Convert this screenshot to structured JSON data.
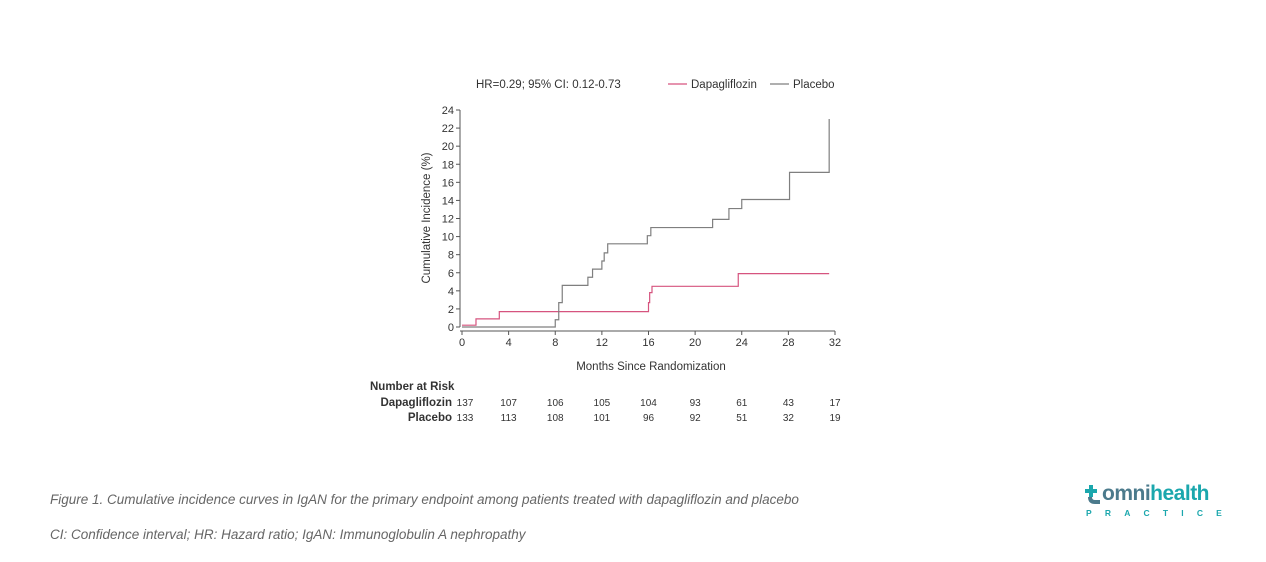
{
  "chart_data": {
    "type": "line",
    "title": "",
    "annotation": "HR=0.29; 95% CI: 0.12-0.73",
    "xlabel": "Months Since Randomization",
    "ylabel": "Cumulative Incidence (%)",
    "xlim": [
      0,
      32
    ],
    "ylim": [
      0,
      24
    ],
    "xticks": [
      0,
      4,
      8,
      12,
      16,
      20,
      24,
      28,
      32
    ],
    "yticks": [
      0,
      2,
      4,
      6,
      8,
      10,
      12,
      14,
      16,
      18,
      20,
      22,
      24
    ],
    "legend_position": "top-right",
    "series": [
      {
        "name": "Dapagliflozin",
        "color": "#d6547f",
        "step": true,
        "x": [
          0,
          1.2,
          3.2,
          16,
          16.1,
          16.3,
          23.7,
          31.5
        ],
        "y": [
          0.2,
          0.9,
          1.7,
          2.7,
          3.8,
          4.5,
          5.9,
          5.9
        ]
      },
      {
        "name": "Placebo",
        "color": "#7f7f7f",
        "step": true,
        "x": [
          0,
          8.0,
          8.3,
          8.6,
          10.8,
          11.2,
          12.0,
          12.2,
          12.5,
          15.9,
          16.2,
          21.5,
          22.9,
          24.0,
          28.1,
          31.5
        ],
        "y": [
          0,
          0.8,
          2.7,
          4.6,
          5.5,
          6.4,
          7.3,
          8.2,
          9.2,
          10.1,
          11.0,
          11.9,
          13.1,
          14.1,
          17.1,
          23.0
        ]
      }
    ],
    "risk_table": {
      "header": "Number at Risk",
      "times": [
        0,
        4,
        8,
        12,
        16,
        20,
        24,
        28,
        32
      ],
      "rows": [
        {
          "label": "Dapagliflozin",
          "values": [
            "137",
            "107",
            "106",
            "105",
            "104",
            "93",
            "61",
            "43",
            "17"
          ]
        },
        {
          "label": "Placebo",
          "values": [
            "133",
            "113",
            "108",
            "101",
            "96",
            "92",
            "51",
            "32",
            "19"
          ]
        }
      ]
    }
  },
  "captions": {
    "figure": "Figure 1. Cumulative incidence curves in IgAN for the primary endpoint among patients treated with dapagliflozin and placebo",
    "abbreviations": "CI: Confidence interval; HR: Hazard ratio; IgAN: Immunoglobulin A nephropathy"
  },
  "logo": {
    "word_part1": "omni",
    "word_part2": "health",
    "subtitle": "PRACTICE",
    "primary_color": "#4b7a8c",
    "accent_color": "#1ba7ad"
  }
}
